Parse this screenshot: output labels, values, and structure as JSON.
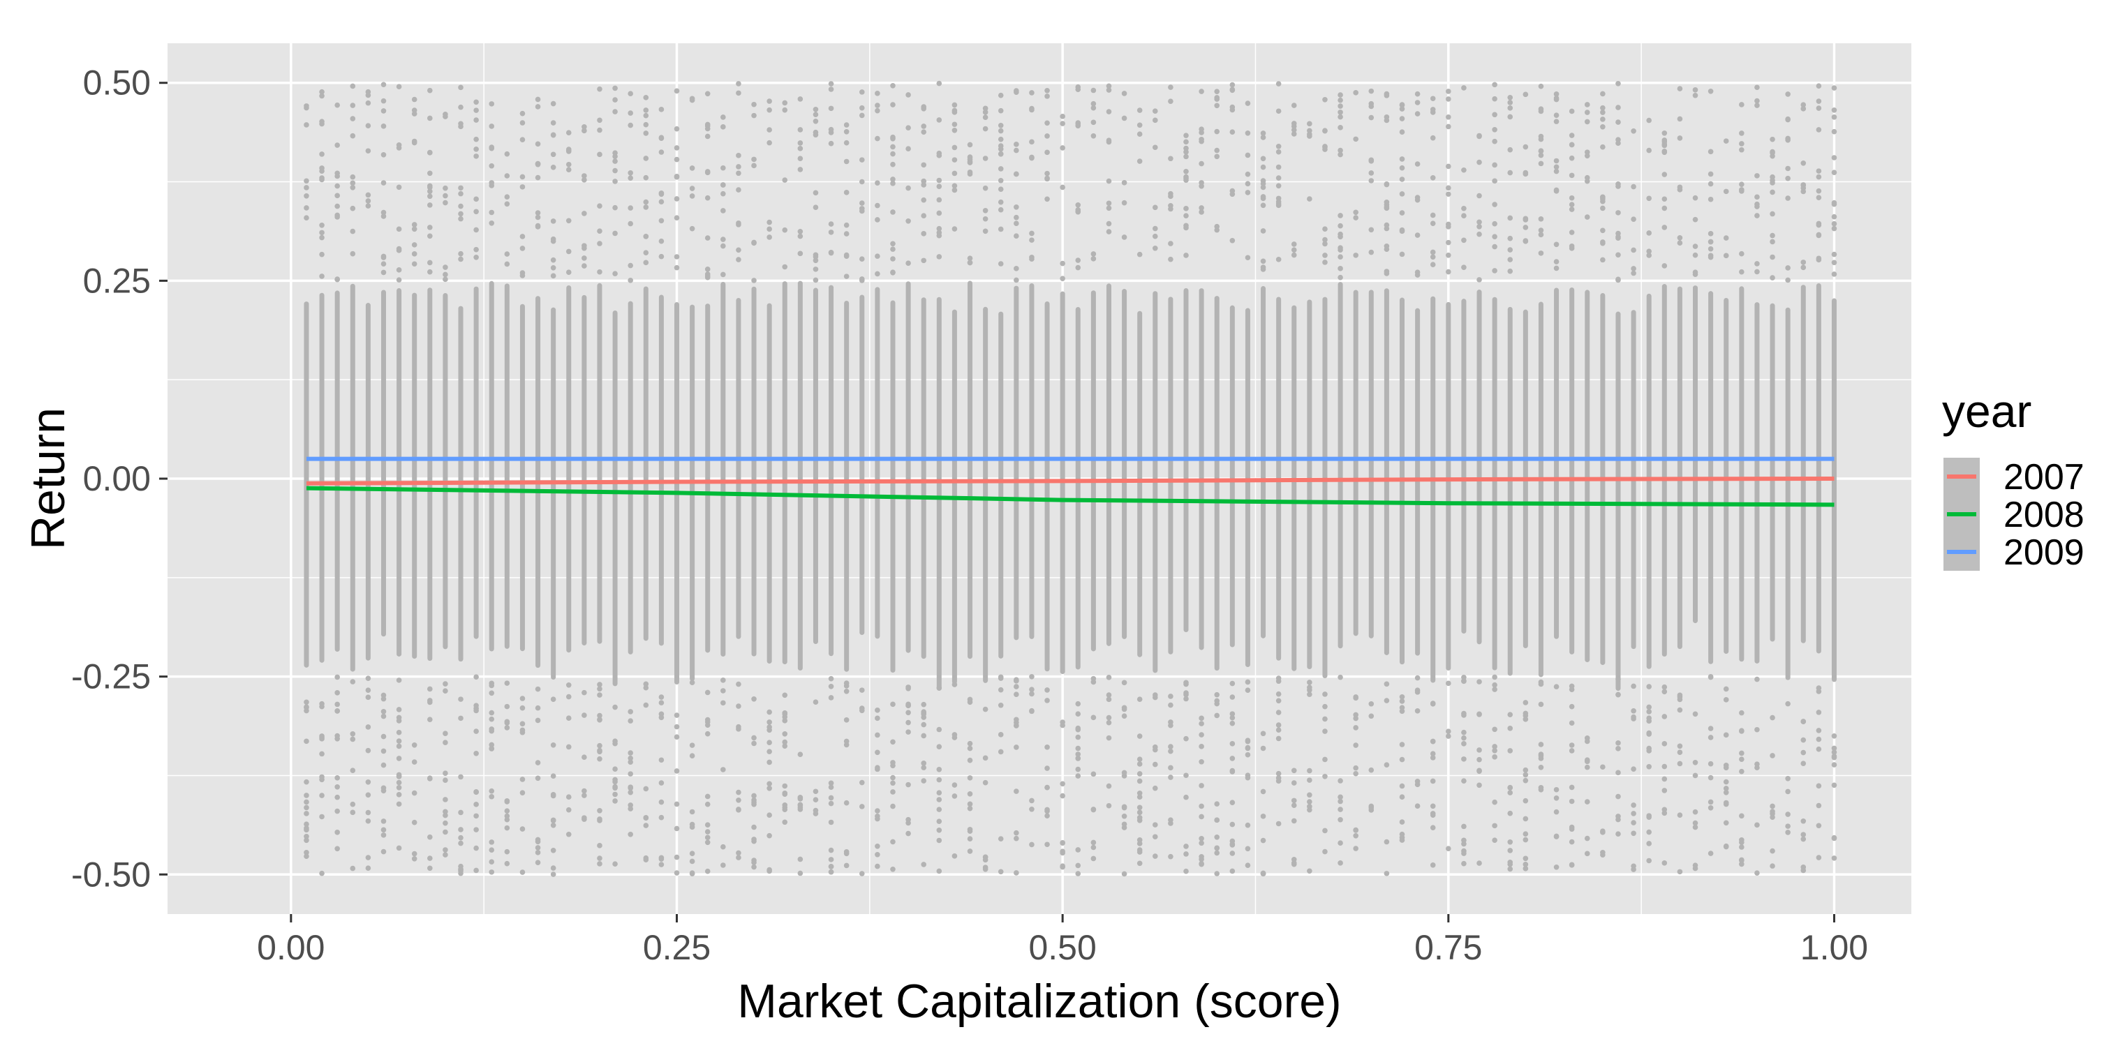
{
  "chart_data": {
    "type": "scatter",
    "title": "",
    "xlabel": "Market Capitalization (score)",
    "ylabel": "Return",
    "xlim": [
      -0.08,
      1.05
    ],
    "ylim": [
      -0.55,
      0.55
    ],
    "x_ticks": [
      0.0,
      0.25,
      0.5,
      0.75,
      1.0
    ],
    "x_tick_labels": [
      "0.00",
      "0.25",
      "0.50",
      "0.75",
      "1.00"
    ],
    "y_ticks": [
      -0.5,
      -0.25,
      0.0,
      0.25,
      0.5
    ],
    "y_tick_labels": [
      "-0.50",
      "-0.25",
      "0.00",
      "0.25",
      "0.50"
    ],
    "grid": true,
    "background": "#e5e5e5",
    "point_color": "#b3b3b3",
    "scatter": {
      "description": "Dense vertical columns of gray points at score percentiles 0.01 to 1.00 in steps of 0.01; returns spread between -0.50 and 0.50, concentrated within about -0.25 to 0.25",
      "x_start": 0.01,
      "x_end": 1.0,
      "x_step": 0.01,
      "y_range": [
        -0.5,
        0.5
      ],
      "core_range": [
        -0.25,
        0.25
      ]
    },
    "legend": {
      "title": "year",
      "position": "right"
    },
    "series": [
      {
        "name": "2007",
        "color": "#f8766d",
        "x": [
          0.01,
          0.25,
          0.5,
          0.75,
          1.0
        ],
        "values": [
          -0.006,
          -0.004,
          -0.003,
          -0.001,
          0.0
        ]
      },
      {
        "name": "2008",
        "color": "#00ba38",
        "x": [
          0.01,
          0.25,
          0.5,
          0.75,
          1.0
        ],
        "values": [
          -0.012,
          -0.018,
          -0.027,
          -0.031,
          -0.033
        ]
      },
      {
        "name": "2009",
        "color": "#619cff",
        "x": [
          0.01,
          0.25,
          0.5,
          0.75,
          1.0
        ],
        "values": [
          0.025,
          0.025,
          0.025,
          0.025,
          0.025
        ]
      }
    ]
  }
}
